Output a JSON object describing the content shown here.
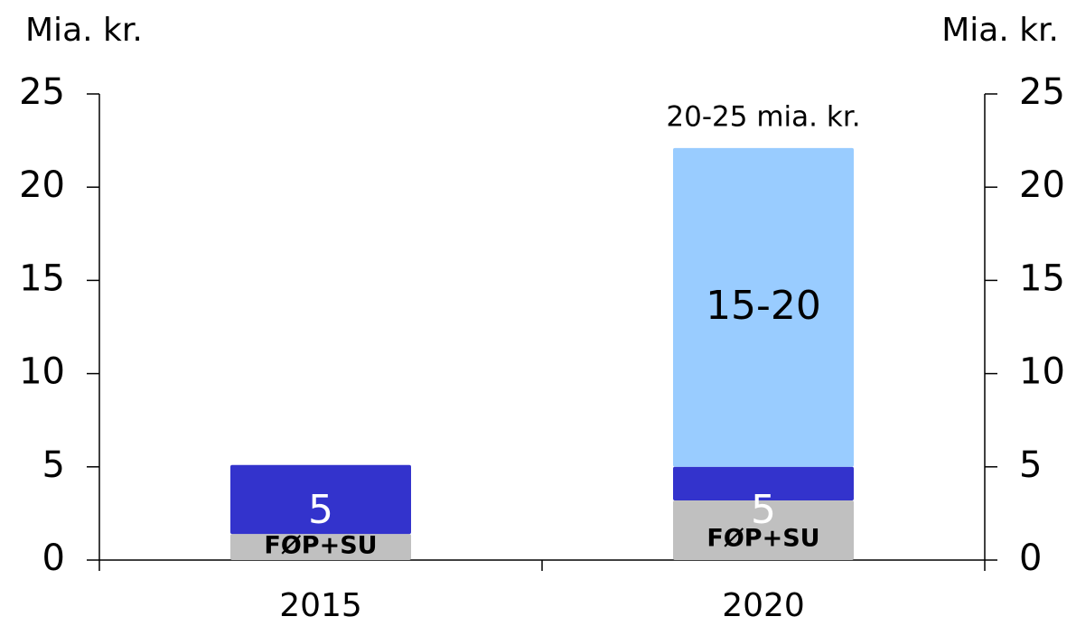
{
  "chart_data": {
    "type": "stacked_bar",
    "ylabel": "Mia. kr.",
    "y2label": "Mia. kr.",
    "categories": [
      "2015",
      "2020"
    ],
    "series": [
      {
        "name": "FØP+SU",
        "color": "#c0c0c0",
        "values": [
          1.4,
          3.2
        ]
      },
      {
        "color": "#3333cc",
        "values": [
          3.7,
          1.8
        ]
      },
      {
        "color": "#99ccff",
        "values": [
          0,
          17.1
        ]
      }
    ],
    "annotations": [
      "5",
      "5",
      "15-20",
      "20-25 mia. kr."
    ],
    "ylim": [
      0,
      25
    ],
    "yticks": [
      0,
      5,
      10,
      15,
      20,
      25
    ],
    "y2lim": [
      0,
      25
    ],
    "y2ticks": [
      0,
      5,
      10,
      15,
      20,
      25
    ]
  }
}
